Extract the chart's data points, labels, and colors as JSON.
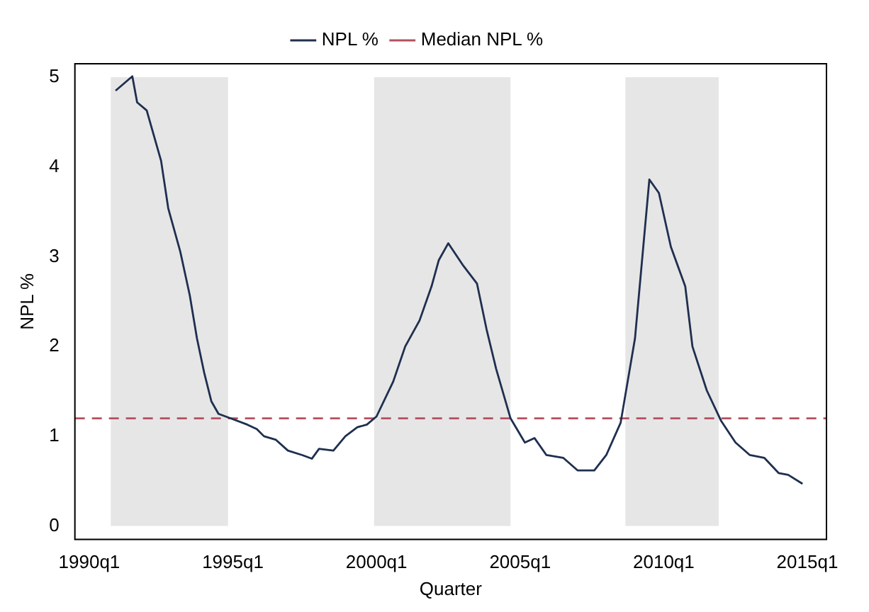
{
  "chart_data": {
    "type": "line",
    "xlabel": "Quarter",
    "ylabel": "NPL %",
    "xlim": [
      "1989-07",
      "2015-09"
    ],
    "ylim": [
      -0.15,
      5.15
    ],
    "xticks": [
      {
        "value": "1990-01",
        "label": "1990q1"
      },
      {
        "value": "1995-01",
        "label": "1995q1"
      },
      {
        "value": "2000-01",
        "label": "2000q1"
      },
      {
        "value": "2005-01",
        "label": "2005q1"
      },
      {
        "value": "2010-01",
        "label": "2010q1"
      },
      {
        "value": "2015-01",
        "label": "2015q1"
      }
    ],
    "yticks": [
      0,
      1,
      2,
      3,
      4,
      5
    ],
    "series": [
      {
        "name": "NPL %",
        "color": "#1f2f4f",
        "x": [
          "1990-12",
          "1991-07",
          "1991-09",
          "1992-01",
          "1992-07",
          "1992-10",
          "1993-03",
          "1993-07",
          "1993-10",
          "1994-01",
          "1994-04",
          "1994-07",
          "1994-12",
          "1995-07",
          "1995-11",
          "1996-02",
          "1996-07",
          "1996-12",
          "1997-06",
          "1997-10",
          "1998-01",
          "1998-07",
          "1998-12",
          "1999-05",
          "1999-09",
          "2000-01",
          "2000-08",
          "2001-01",
          "2001-07",
          "2001-12",
          "2002-03",
          "2002-07",
          "2003-01",
          "2003-07",
          "2003-11",
          "2004-03",
          "2004-09",
          "2005-03",
          "2005-07",
          "2005-12",
          "2006-07",
          "2007-01",
          "2007-08",
          "2008-01",
          "2008-07",
          "2009-01",
          "2009-07",
          "2009-11",
          "2010-04",
          "2010-10",
          "2011-01",
          "2011-07",
          "2012-01",
          "2012-07",
          "2013-01",
          "2013-07",
          "2014-01",
          "2014-05",
          "2014-11"
        ],
        "values": [
          4.85,
          5.01,
          4.72,
          4.63,
          4.07,
          3.54,
          3.06,
          2.57,
          2.09,
          1.71,
          1.39,
          1.25,
          1.2,
          1.13,
          1.08,
          1.0,
          0.96,
          0.84,
          0.79,
          0.75,
          0.86,
          0.84,
          1.0,
          1.1,
          1.13,
          1.22,
          1.61,
          2.0,
          2.29,
          2.67,
          2.96,
          3.15,
          2.91,
          2.7,
          2.19,
          1.75,
          1.2,
          0.93,
          0.98,
          0.79,
          0.76,
          0.62,
          0.62,
          0.79,
          1.15,
          2.09,
          3.86,
          3.71,
          3.11,
          2.67,
          2.0,
          1.51,
          1.17,
          0.93,
          0.79,
          0.76,
          0.59,
          0.57,
          0.47
        ]
      }
    ],
    "ref_lines": [
      {
        "axis": "y",
        "value": 1.2,
        "label": "Median NPL %",
        "color": "#b5505f",
        "line_style": "dashed"
      }
    ],
    "bands": [
      {
        "axis": "x",
        "from": "1990-10",
        "to": "1994-11",
        "color": "#e6e6e6"
      },
      {
        "axis": "x",
        "from": "1999-12",
        "to": "2004-09",
        "color": "#e6e6e6"
      },
      {
        "axis": "x",
        "from": "2008-09",
        "to": "2011-12",
        "color": "#e6e6e6"
      }
    ],
    "grid": false,
    "legend": "top",
    "marker": "none",
    "line_style": "solid"
  }
}
